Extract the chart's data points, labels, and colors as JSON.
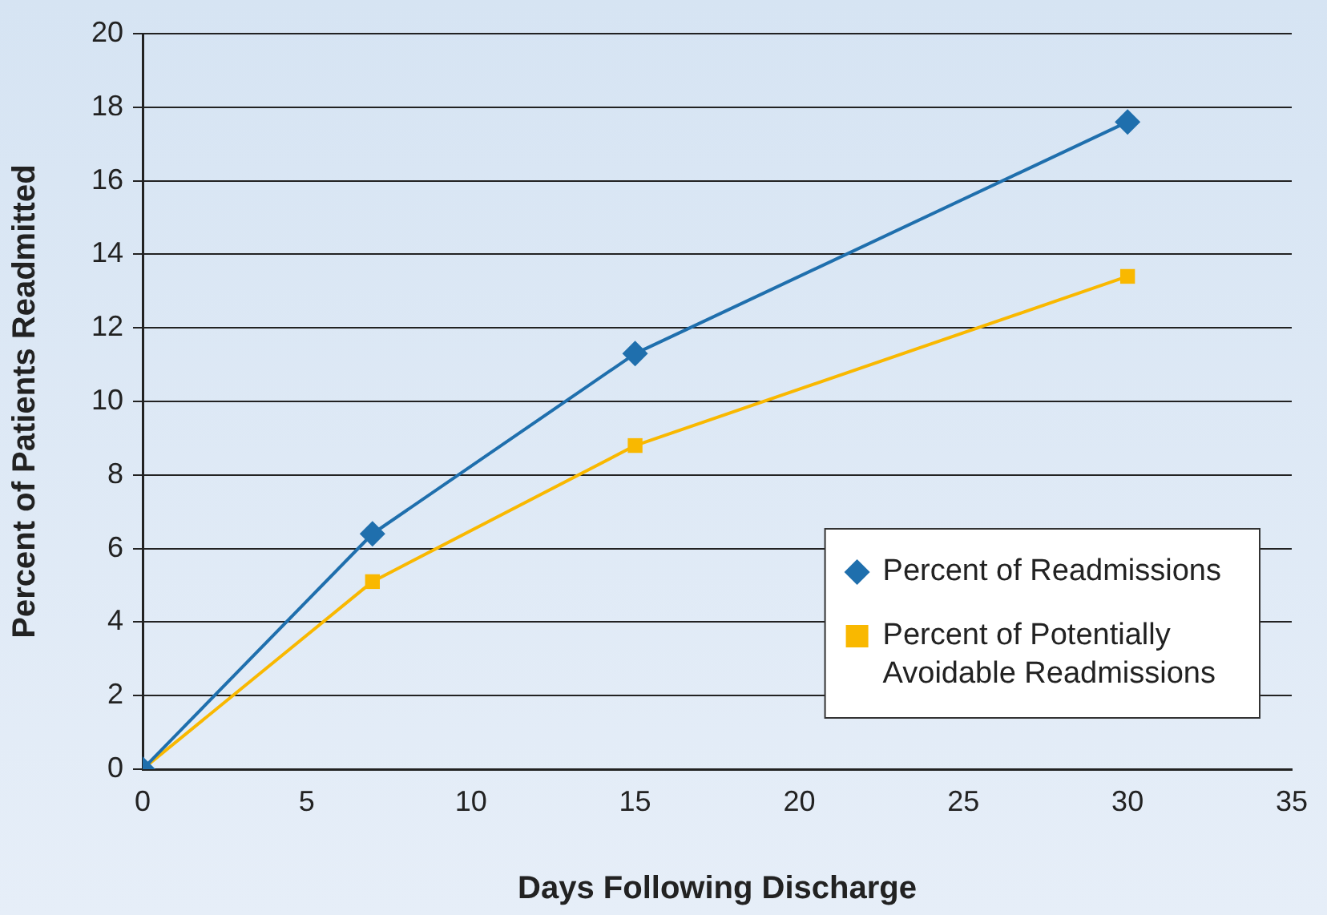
{
  "chart_data": {
    "type": "line",
    "xlabel": "Days Following Discharge",
    "ylabel": "Percent of Patients Readmitted",
    "xlim": [
      0,
      35
    ],
    "xticks": [
      0,
      5,
      10,
      15,
      20,
      25,
      30,
      35
    ],
    "ylim": [
      0,
      20
    ],
    "yticks": [
      0,
      2,
      4,
      6,
      8,
      10,
      12,
      14,
      16,
      18,
      20
    ],
    "grid": "y",
    "legend": "bottom right",
    "line_style": "solid",
    "series": [
      {
        "name": "Percent of Readmissions",
        "color": "#1f6fad",
        "marker": "diamond",
        "x": [
          0,
          7,
          15,
          30
        ],
        "values": [
          0,
          6.4,
          11.3,
          17.6
        ]
      },
      {
        "name": "Percent of Potentially Avoidable Readmissions",
        "color": "#f9b800",
        "marker": "square",
        "x": [
          0,
          7,
          15,
          30
        ],
        "values": [
          0,
          5.1,
          8.8,
          13.4
        ]
      }
    ]
  }
}
